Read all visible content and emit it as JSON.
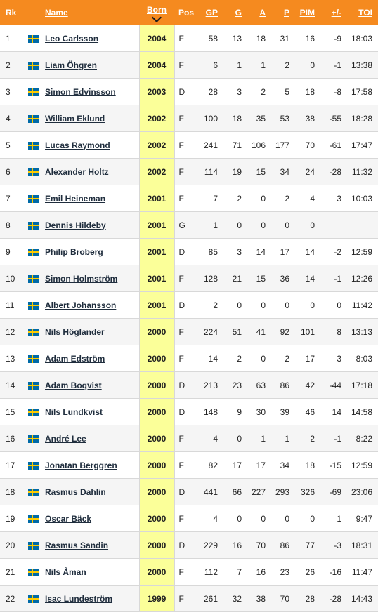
{
  "headers": {
    "rk": "Rk",
    "name": "Name",
    "born": "Born",
    "pos": "Pos",
    "gp": "GP",
    "g": "G",
    "a": "A",
    "p": "P",
    "pim": "PIM",
    "pm": "+/-",
    "toi": "TOI"
  },
  "sort": {
    "column": "born",
    "direction": "descending",
    "icon": "chevron-down-icon"
  },
  "flag_icon": "flag-sweden-icon",
  "colors": {
    "header_bg": "#f58a1f",
    "sorted_column_bg": "#fbff99",
    "flag_blue": "#006aa7",
    "flag_yellow": "#fecc00"
  },
  "rows": [
    {
      "rk": "1",
      "name": "Leo Carlsson",
      "born": "2004",
      "pos": "F",
      "gp": "58",
      "g": "13",
      "a": "18",
      "p": "31",
      "pim": "16",
      "pm": "-9",
      "toi": "18:03"
    },
    {
      "rk": "2",
      "name": "Liam Öhgren",
      "born": "2004",
      "pos": "F",
      "gp": "6",
      "g": "1",
      "a": "1",
      "p": "2",
      "pim": "0",
      "pm": "-1",
      "toi": "13:38"
    },
    {
      "rk": "3",
      "name": "Simon Edvinsson",
      "born": "2003",
      "pos": "D",
      "gp": "28",
      "g": "3",
      "a": "2",
      "p": "5",
      "pim": "18",
      "pm": "-8",
      "toi": "17:58"
    },
    {
      "rk": "4",
      "name": "William Eklund",
      "born": "2002",
      "pos": "F",
      "gp": "100",
      "g": "18",
      "a": "35",
      "p": "53",
      "pim": "38",
      "pm": "-55",
      "toi": "18:28"
    },
    {
      "rk": "5",
      "name": "Lucas Raymond",
      "born": "2002",
      "pos": "F",
      "gp": "241",
      "g": "71",
      "a": "106",
      "p": "177",
      "pim": "70",
      "pm": "-61",
      "toi": "17:47"
    },
    {
      "rk": "6",
      "name": "Alexander Holtz",
      "born": "2002",
      "pos": "F",
      "gp": "114",
      "g": "19",
      "a": "15",
      "p": "34",
      "pim": "24",
      "pm": "-28",
      "toi": "11:32"
    },
    {
      "rk": "7",
      "name": "Emil Heineman",
      "born": "2001",
      "pos": "F",
      "gp": "7",
      "g": "2",
      "a": "0",
      "p": "2",
      "pim": "4",
      "pm": "3",
      "toi": "10:03"
    },
    {
      "rk": "8",
      "name": "Dennis Hildeby",
      "born": "2001",
      "pos": "G",
      "gp": "1",
      "g": "0",
      "a": "0",
      "p": "0",
      "pim": "0",
      "pm": "",
      "toi": ""
    },
    {
      "rk": "9",
      "name": "Philip Broberg",
      "born": "2001",
      "pos": "D",
      "gp": "85",
      "g": "3",
      "a": "14",
      "p": "17",
      "pim": "14",
      "pm": "-2",
      "toi": "12:59"
    },
    {
      "rk": "10",
      "name": "Simon Holmström",
      "born": "2001",
      "pos": "F",
      "gp": "128",
      "g": "21",
      "a": "15",
      "p": "36",
      "pim": "14",
      "pm": "-1",
      "toi": "12:26"
    },
    {
      "rk": "11",
      "name": "Albert Johansson",
      "born": "2001",
      "pos": "D",
      "gp": "2",
      "g": "0",
      "a": "0",
      "p": "0",
      "pim": "0",
      "pm": "0",
      "toi": "11:42"
    },
    {
      "rk": "12",
      "name": "Nils Höglander",
      "born": "2000",
      "pos": "F",
      "gp": "224",
      "g": "51",
      "a": "41",
      "p": "92",
      "pim": "101",
      "pm": "8",
      "toi": "13:13"
    },
    {
      "rk": "13",
      "name": "Adam Edström",
      "born": "2000",
      "pos": "F",
      "gp": "14",
      "g": "2",
      "a": "0",
      "p": "2",
      "pim": "17",
      "pm": "3",
      "toi": "8:03"
    },
    {
      "rk": "14",
      "name": "Adam Boqvist",
      "born": "2000",
      "pos": "D",
      "gp": "213",
      "g": "23",
      "a": "63",
      "p": "86",
      "pim": "42",
      "pm": "-44",
      "toi": "17:18"
    },
    {
      "rk": "15",
      "name": "Nils Lundkvist",
      "born": "2000",
      "pos": "D",
      "gp": "148",
      "g": "9",
      "a": "30",
      "p": "39",
      "pim": "46",
      "pm": "14",
      "toi": "14:58"
    },
    {
      "rk": "16",
      "name": "André Lee",
      "born": "2000",
      "pos": "F",
      "gp": "4",
      "g": "0",
      "a": "1",
      "p": "1",
      "pim": "2",
      "pm": "-1",
      "toi": "8:22"
    },
    {
      "rk": "17",
      "name": "Jonatan Berggren",
      "born": "2000",
      "pos": "F",
      "gp": "82",
      "g": "17",
      "a": "17",
      "p": "34",
      "pim": "18",
      "pm": "-15",
      "toi": "12:59"
    },
    {
      "rk": "18",
      "name": "Rasmus Dahlin",
      "born": "2000",
      "pos": "D",
      "gp": "441",
      "g": "66",
      "a": "227",
      "p": "293",
      "pim": "326",
      "pm": "-69",
      "toi": "23:06"
    },
    {
      "rk": "19",
      "name": "Oscar Bäck",
      "born": "2000",
      "pos": "F",
      "gp": "4",
      "g": "0",
      "a": "0",
      "p": "0",
      "pim": "0",
      "pm": "1",
      "toi": "9:47"
    },
    {
      "rk": "20",
      "name": "Rasmus Sandin",
      "born": "2000",
      "pos": "D",
      "gp": "229",
      "g": "16",
      "a": "70",
      "p": "86",
      "pim": "77",
      "pm": "-3",
      "toi": "18:31"
    },
    {
      "rk": "21",
      "name": "Nils Åman",
      "born": "2000",
      "pos": "F",
      "gp": "112",
      "g": "7",
      "a": "16",
      "p": "23",
      "pim": "26",
      "pm": "-16",
      "toi": "11:47"
    },
    {
      "rk": "22",
      "name": "Isac Lundeström",
      "born": "1999",
      "pos": "F",
      "gp": "261",
      "g": "32",
      "a": "38",
      "p": "70",
      "pim": "28",
      "pm": "-28",
      "toi": "14:43"
    }
  ]
}
